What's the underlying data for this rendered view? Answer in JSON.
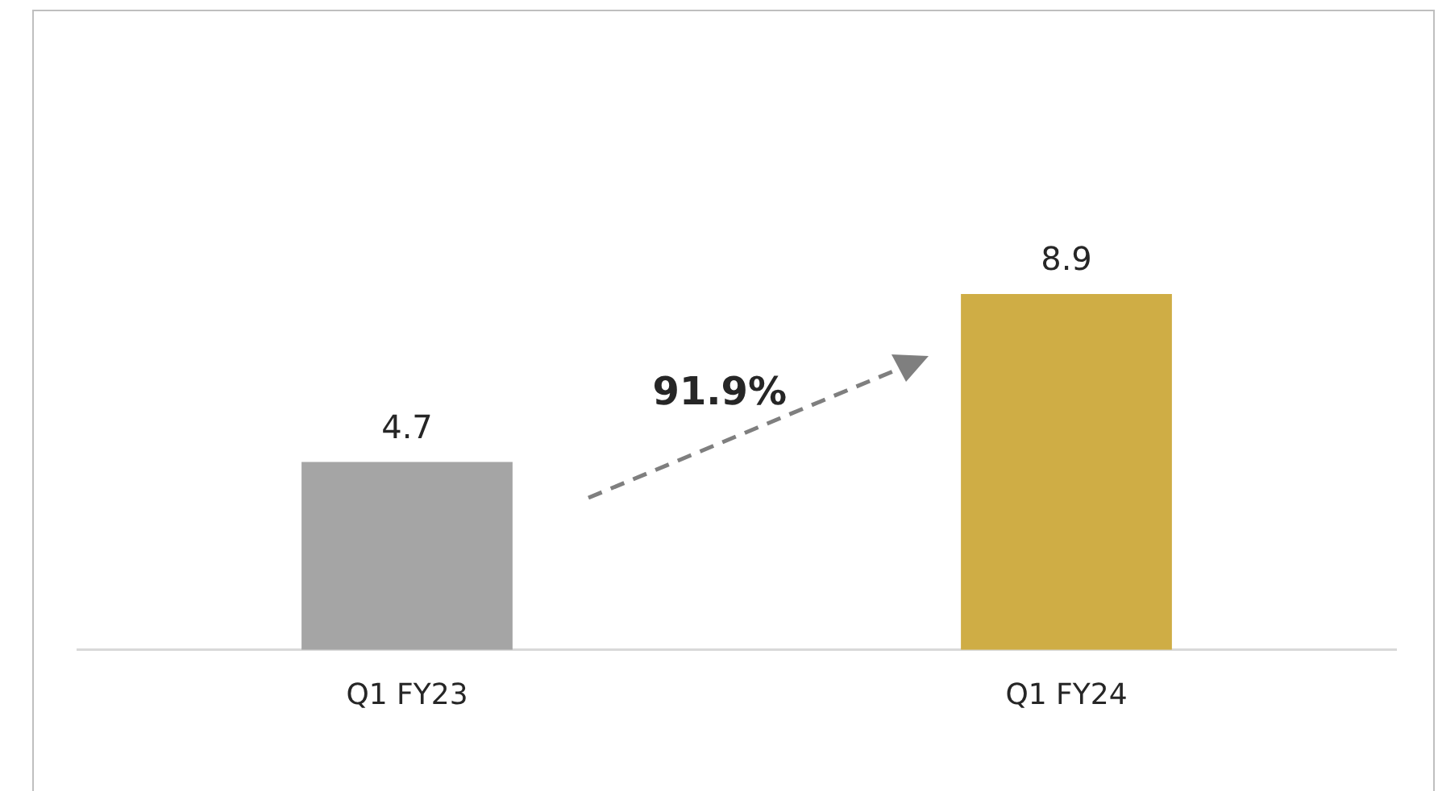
{
  "chart_data": {
    "type": "bar",
    "categories": [
      "Q1 FY23",
      "Q1 FY24"
    ],
    "values": [
      4.7,
      8.9
    ],
    "colors": [
      "#a5a5a5",
      "#cfad45"
    ],
    "data_labels": true,
    "tick_labels": "x",
    "annotations": [
      "91.9%"
    ]
  }
}
